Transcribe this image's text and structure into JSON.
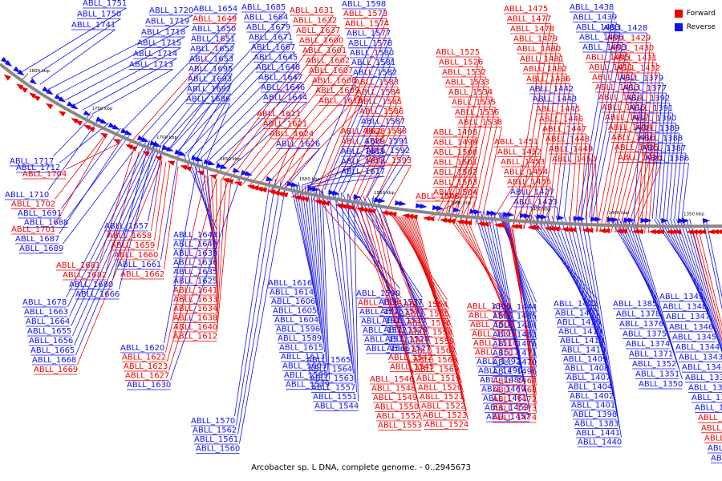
{
  "caption": "Arcobacter sp. L DNA, complete genome. - 0..2945673",
  "legend": [
    {
      "label": "Forward",
      "color": "#ee0000"
    },
    {
      "label": "Reverse",
      "color": "#1010ee"
    }
  ],
  "colors": {
    "forward": "#ee0000",
    "reverse": "#1010ee",
    "backbone": "#888888"
  },
  "ticks": [
    "1800 kbp",
    "1750 kbp",
    "1700 kbp",
    "1650 kbp",
    "1600 kbp",
    "1550 kbp",
    "1500 kbp",
    "1450 kbp",
    "1400 kbp",
    "1350 kbp"
  ],
  "genes": [
    {
      "n": 1751,
      "s": "r"
    },
    {
      "n": 1750,
      "s": "r"
    },
    {
      "n": 1741,
      "s": "r"
    },
    {
      "n": 1720,
      "s": "r"
    },
    {
      "n": 1719,
      "s": "r"
    },
    {
      "n": 1718,
      "s": "r"
    },
    {
      "n": 1715,
      "s": "r"
    },
    {
      "n": 1714,
      "s": "r"
    },
    {
      "n": 1713,
      "s": "r"
    },
    {
      "n": 1717,
      "s": "r"
    },
    {
      "n": 1712,
      "s": "r"
    },
    {
      "n": 1704,
      "s": "f"
    },
    {
      "n": 1710,
      "s": "r"
    },
    {
      "n": 1702,
      "s": "f"
    },
    {
      "n": 1691,
      "s": "r"
    },
    {
      "n": 1688,
      "s": "r"
    },
    {
      "n": 1701,
      "s": "f"
    },
    {
      "n": 1687,
      "s": "r"
    },
    {
      "n": 1689,
      "s": "r"
    },
    {
      "n": 1681,
      "s": "f"
    },
    {
      "n": 1682,
      "s": "f"
    },
    {
      "n": 1680,
      "s": "r"
    },
    {
      "n": 1666,
      "s": "r"
    },
    {
      "n": 1678,
      "s": "r"
    },
    {
      "n": 1663,
      "s": "r"
    },
    {
      "n": 1664,
      "s": "r"
    },
    {
      "n": 1655,
      "s": "r"
    },
    {
      "n": 1656,
      "s": "r"
    },
    {
      "n": 1665,
      "s": "r"
    },
    {
      "n": 1668,
      "s": "r"
    },
    {
      "n": 1669,
      "s": "f"
    },
    {
      "n": 1657,
      "s": "r"
    },
    {
      "n": 1658,
      "s": "f"
    },
    {
      "n": 1659,
      "s": "f"
    },
    {
      "n": 1660,
      "s": "f"
    },
    {
      "n": 1661,
      "s": "r"
    },
    {
      "n": 1662,
      "s": "f"
    },
    {
      "n": 1654,
      "s": "r"
    },
    {
      "n": 1649,
      "s": "f"
    },
    {
      "n": 1650,
      "s": "r"
    },
    {
      "n": 1651,
      "s": "r"
    },
    {
      "n": 1652,
      "s": "r"
    },
    {
      "n": 1653,
      "s": "r"
    },
    {
      "n": 1695,
      "s": "r"
    },
    {
      "n": 1693,
      "s": "r"
    },
    {
      "n": 1692,
      "s": "r"
    },
    {
      "n": 1686,
      "s": "r"
    },
    {
      "n": 1685,
      "s": "r"
    },
    {
      "n": 1684,
      "s": "r"
    },
    {
      "n": 1679,
      "s": "r"
    },
    {
      "n": 1671,
      "s": "r"
    },
    {
      "n": 1667,
      "s": "r"
    },
    {
      "n": 1645,
      "s": "r"
    },
    {
      "n": 1648,
      "s": "r"
    },
    {
      "n": 1647,
      "s": "r"
    },
    {
      "n": 1646,
      "s": "r"
    },
    {
      "n": 1644,
      "s": "r"
    },
    {
      "n": 1643,
      "s": "r"
    },
    {
      "n": 1642,
      "s": "r"
    },
    {
      "n": 1639,
      "s": "r"
    },
    {
      "n": 1636,
      "s": "r"
    },
    {
      "n": 1635,
      "s": "r"
    },
    {
      "n": 1625,
      "s": "r"
    },
    {
      "n": 1641,
      "s": "f"
    },
    {
      "n": 1633,
      "s": "f"
    },
    {
      "n": 1634,
      "s": "f"
    },
    {
      "n": 1638,
      "s": "f"
    },
    {
      "n": 1640,
      "s": "f"
    },
    {
      "n": 1612,
      "s": "f"
    },
    {
      "n": 1620,
      "s": "r"
    },
    {
      "n": 1622,
      "s": "f"
    },
    {
      "n": 1623,
      "s": "f"
    },
    {
      "n": 1627,
      "s": "f"
    },
    {
      "n": 1630,
      "s": "r"
    },
    {
      "n": 1631,
      "s": "f"
    },
    {
      "n": 1632,
      "s": "f"
    },
    {
      "n": 1637,
      "s": "f"
    },
    {
      "n": 1600,
      "s": "f"
    },
    {
      "n": 1601,
      "s": "f"
    },
    {
      "n": 1602,
      "s": "f"
    },
    {
      "n": 1607,
      "s": "f"
    },
    {
      "n": 1608,
      "s": "f"
    },
    {
      "n": 1609,
      "s": "f"
    },
    {
      "n": 1610,
      "s": "f"
    },
    {
      "n": 1611,
      "s": "f"
    },
    {
      "n": 1621,
      "s": "f"
    },
    {
      "n": 1624,
      "s": "f"
    },
    {
      "n": 1626,
      "s": "r"
    },
    {
      "n": 1628,
      "s": "f"
    },
    {
      "n": 1629,
      "s": "f"
    },
    {
      "n": 1619,
      "s": "r"
    },
    {
      "n": 1618,
      "s": "r"
    },
    {
      "n": 1617,
      "s": "r"
    },
    {
      "n": 1616,
      "s": "r"
    },
    {
      "n": 1614,
      "s": "r"
    },
    {
      "n": 1606,
      "s": "r"
    },
    {
      "n": 1605,
      "s": "r"
    },
    {
      "n": 1604,
      "s": "r"
    },
    {
      "n": 1596,
      "s": "r"
    },
    {
      "n": 1589,
      "s": "r"
    },
    {
      "n": 1615,
      "s": "r"
    },
    {
      "n": 1613,
      "s": "r"
    },
    {
      "n": 1603,
      "s": "r"
    },
    {
      "n": 1599,
      "s": "r"
    },
    {
      "n": 1579,
      "s": "r"
    },
    {
      "n": 1570,
      "s": "r"
    },
    {
      "n": 1562,
      "s": "r"
    },
    {
      "n": 1561,
      "s": "r"
    },
    {
      "n": 1560,
      "s": "r"
    },
    {
      "n": 1598,
      "s": "r"
    },
    {
      "n": 1573,
      "s": "f"
    },
    {
      "n": 1574,
      "s": "f"
    },
    {
      "n": 1577,
      "s": "r"
    },
    {
      "n": 1578,
      "s": "r"
    },
    {
      "n": 1580,
      "s": "r"
    },
    {
      "n": 1581,
      "s": "r"
    },
    {
      "n": 1582,
      "s": "r"
    },
    {
      "n": 1583,
      "s": "f"
    },
    {
      "n": 1584,
      "s": "f"
    },
    {
      "n": 1585,
      "s": "f"
    },
    {
      "n": 1586,
      "s": "f"
    },
    {
      "n": 1587,
      "s": "r"
    },
    {
      "n": 1588,
      "s": "f"
    },
    {
      "n": 1591,
      "s": "r"
    },
    {
      "n": 1592,
      "s": "r"
    },
    {
      "n": 1593,
      "s": "f"
    },
    {
      "n": 1590,
      "s": "r"
    },
    {
      "n": 1594,
      "s": "f"
    },
    {
      "n": 1576,
      "s": "r"
    },
    {
      "n": 1575,
      "s": "r"
    },
    {
      "n": 1572,
      "s": "r"
    },
    {
      "n": 1571,
      "s": "r"
    },
    {
      "n": 1566,
      "s": "r"
    },
    {
      "n": 1565,
      "s": "r"
    },
    {
      "n": 1564,
      "s": "r"
    },
    {
      "n": 1563,
      "s": "r"
    },
    {
      "n": 1557,
      "s": "r"
    },
    {
      "n": 1551,
      "s": "r"
    },
    {
      "n": 1544,
      "s": "r"
    },
    {
      "n": 1537,
      "s": "r"
    },
    {
      "n": 1531,
      "s": "r"
    },
    {
      "n": 1530,
      "s": "r"
    },
    {
      "n": 1529,
      "s": "r"
    },
    {
      "n": 1528,
      "s": "r"
    },
    {
      "n": 1527,
      "s": "r"
    },
    {
      "n": 1542,
      "s": "f"
    },
    {
      "n": 1545,
      "s": "f"
    },
    {
      "n": 1546,
      "s": "f"
    },
    {
      "n": 1548,
      "s": "f"
    },
    {
      "n": 1549,
      "s": "f"
    },
    {
      "n": 1550,
      "s": "f"
    },
    {
      "n": 1552,
      "s": "f"
    },
    {
      "n": 1553,
      "s": "f"
    },
    {
      "n": 1554,
      "s": "f"
    },
    {
      "n": 1555,
      "s": "f"
    },
    {
      "n": 1556,
      "s": "f"
    },
    {
      "n": 1558,
      "s": "f"
    },
    {
      "n": 1559,
      "s": "f"
    },
    {
      "n": 1567,
      "s": "f"
    },
    {
      "n": 1568,
      "s": "f"
    },
    {
      "n": 1569,
      "s": "f"
    },
    {
      "n": 1519,
      "s": "f"
    },
    {
      "n": 1520,
      "s": "f"
    },
    {
      "n": 1521,
      "s": "f"
    },
    {
      "n": 1522,
      "s": "f"
    },
    {
      "n": 1523,
      "s": "f"
    },
    {
      "n": 1524,
      "s": "f"
    },
    {
      "n": 1525,
      "s": "f"
    },
    {
      "n": 1526,
      "s": "f"
    },
    {
      "n": 1532,
      "s": "f"
    },
    {
      "n": 1533,
      "s": "f"
    },
    {
      "n": 1534,
      "s": "f"
    },
    {
      "n": 1535,
      "s": "f"
    },
    {
      "n": 1536,
      "s": "f"
    },
    {
      "n": 1538,
      "s": "f"
    },
    {
      "n": 1498,
      "s": "f"
    },
    {
      "n": 1499,
      "s": "f"
    },
    {
      "n": 1500,
      "s": "f"
    },
    {
      "n": 1501,
      "s": "f"
    },
    {
      "n": 1502,
      "s": "f"
    },
    {
      "n": 1503,
      "s": "f"
    },
    {
      "n": 1504,
      "s": "f"
    },
    {
      "n": 1505,
      "s": "f"
    },
    {
      "n": 1506,
      "s": "f"
    },
    {
      "n": 1507,
      "s": "f"
    },
    {
      "n": 1508,
      "s": "f"
    },
    {
      "n": 1509,
      "s": "f"
    },
    {
      "n": 1510,
      "s": "f"
    },
    {
      "n": 1511,
      "s": "f"
    },
    {
      "n": 1492,
      "s": "r"
    },
    {
      "n": 1490,
      "s": "r"
    },
    {
      "n": 1489,
      "s": "r"
    },
    {
      "n": 1469,
      "s": "r"
    },
    {
      "n": 1461,
      "s": "r"
    },
    {
      "n": 1459,
      "s": "r"
    },
    {
      "n": 1457,
      "s": "r"
    },
    {
      "n": 1444,
      "s": "r"
    },
    {
      "n": 1485,
      "s": "r"
    },
    {
      "n": 1484,
      "s": "r"
    },
    {
      "n": 1483,
      "s": "r"
    },
    {
      "n": 1476,
      "s": "r"
    },
    {
      "n": 1471,
      "s": "r"
    },
    {
      "n": 1470,
      "s": "r"
    },
    {
      "n": 1496,
      "s": "r"
    },
    {
      "n": 1467,
      "s": "f"
    },
    {
      "n": 1468,
      "s": "f"
    },
    {
      "n": 1472,
      "s": "f"
    },
    {
      "n": 1473,
      "s": "f"
    },
    {
      "n": 1474,
      "s": "f"
    },
    {
      "n": 1475,
      "s": "f"
    },
    {
      "n": 1477,
      "s": "f"
    },
    {
      "n": 1478,
      "s": "f"
    },
    {
      "n": 1479,
      "s": "f"
    },
    {
      "n": 1480,
      "s": "f"
    },
    {
      "n": 1481,
      "s": "f"
    },
    {
      "n": 1482,
      "s": "f"
    },
    {
      "n": 1486,
      "s": "f"
    },
    {
      "n": 1442,
      "s": "r"
    },
    {
      "n": 1443,
      "s": "r"
    },
    {
      "n": 1445,
      "s": "f"
    },
    {
      "n": 1446,
      "s": "f"
    },
    {
      "n": 1447,
      "s": "f"
    },
    {
      "n": 1448,
      "s": "f"
    },
    {
      "n": 1449,
      "s": "f"
    },
    {
      "n": 1450,
      "s": "f"
    },
    {
      "n": 1451,
      "s": "f"
    },
    {
      "n": 1452,
      "s": "f"
    },
    {
      "n": 1453,
      "s": "f"
    },
    {
      "n": 1454,
      "s": "f"
    },
    {
      "n": 1455,
      "s": "f"
    },
    {
      "n": 1427,
      "s": "r"
    },
    {
      "n": 1423,
      "s": "r"
    },
    {
      "n": 1422,
      "s": "r"
    },
    {
      "n": 1421,
      "s": "r"
    },
    {
      "n": 1420,
      "s": "r"
    },
    {
      "n": 1419,
      "s": "r"
    },
    {
      "n": 1418,
      "s": "r"
    },
    {
      "n": 1410,
      "s": "r"
    },
    {
      "n": 1409,
      "s": "r"
    },
    {
      "n": 1408,
      "s": "r"
    },
    {
      "n": 1407,
      "s": "r"
    },
    {
      "n": 1404,
      "s": "r"
    },
    {
      "n": 1402,
      "s": "r"
    },
    {
      "n": 1401,
      "s": "r"
    },
    {
      "n": 1398,
      "s": "r"
    },
    {
      "n": 1383,
      "s": "r"
    },
    {
      "n": 1441,
      "s": "r"
    },
    {
      "n": 1440,
      "s": "r"
    },
    {
      "n": 1438,
      "s": "r"
    },
    {
      "n": 1439,
      "s": "r"
    },
    {
      "n": 1433,
      "s": "r"
    },
    {
      "n": 1406,
      "s": "r"
    },
    {
      "n": 1403,
      "s": "r"
    },
    {
      "n": 1405,
      "s": "f"
    },
    {
      "n": 1411,
      "s": "f"
    },
    {
      "n": 1412,
      "s": "f"
    },
    {
      "n": 1413,
      "s": "f"
    },
    {
      "n": 1414,
      "s": "f"
    },
    {
      "n": 1415,
      "s": "f"
    },
    {
      "n": 1417,
      "s": "f"
    },
    {
      "n": 1424,
      "s": "f"
    },
    {
      "n": 1416,
      "s": "f"
    },
    {
      "n": 1425,
      "s": "f"
    },
    {
      "n": 1426,
      "s": "f"
    },
    {
      "n": 1428,
      "s": "r"
    },
    {
      "n": 1429,
      "s": "f"
    },
    {
      "n": 1430,
      "s": "f"
    },
    {
      "n": 1431,
      "s": "f"
    },
    {
      "n": 1432,
      "s": "f"
    },
    {
      "n": 1379,
      "s": "r"
    },
    {
      "n": 1377,
      "s": "r"
    },
    {
      "n": 1392,
      "s": "r"
    },
    {
      "n": 1391,
      "s": "r"
    },
    {
      "n": 1390,
      "s": "r"
    },
    {
      "n": 1389,
      "s": "r"
    },
    {
      "n": 1388,
      "s": "r"
    },
    {
      "n": 1387,
      "s": "r"
    },
    {
      "n": 1386,
      "s": "r"
    },
    {
      "n": 1385,
      "s": "r"
    },
    {
      "n": 1378,
      "s": "r"
    },
    {
      "n": 1376,
      "s": "r"
    },
    {
      "n": 1375,
      "s": "r"
    },
    {
      "n": 1374,
      "s": "r"
    },
    {
      "n": 1371,
      "s": "r"
    },
    {
      "n": 1352,
      "s": "r"
    },
    {
      "n": 1351,
      "s": "r"
    },
    {
      "n": 1350,
      "s": "r"
    },
    {
      "n": 1349,
      "s": "r"
    },
    {
      "n": 1348,
      "s": "r"
    },
    {
      "n": 1347,
      "s": "r"
    },
    {
      "n": 1346,
      "s": "r"
    },
    {
      "n": 1345,
      "s": "r"
    },
    {
      "n": 1344,
      "s": "r"
    },
    {
      "n": 1343,
      "s": "r"
    },
    {
      "n": 1342,
      "s": "r"
    },
    {
      "n": 1337,
      "s": "r"
    },
    {
      "n": 1336,
      "s": "r"
    },
    {
      "n": 1335,
      "s": "r"
    },
    {
      "n": 1327,
      "s": "r"
    },
    {
      "n": 1382,
      "s": "f"
    },
    {
      "n": 1384,
      "s": "f"
    },
    {
      "n": 1393,
      "s": "f"
    },
    {
      "n": 1394,
      "s": "r"
    },
    {
      "n": 1395,
      "s": "r"
    },
    {
      "n": 1396,
      "s": "f"
    },
    {
      "n": 1397,
      "s": "f"
    },
    {
      "n": 1399,
      "s": "f"
    },
    {
      "n": 1400,
      "s": "f"
    },
    {
      "n": 1353,
      "s": "f"
    },
    {
      "n": 1354,
      "s": "f"
    },
    {
      "n": 1355,
      "s": "f"
    },
    {
      "n": 1356,
      "s": "f"
    },
    {
      "n": 1357,
      "s": "f"
    },
    {
      "n": 1358,
      "s": "f"
    },
    {
      "n": 1359,
      "s": "f"
    },
    {
      "n": 1360,
      "s": "f"
    },
    {
      "n": 1361,
      "s": "f"
    },
    {
      "n": 1362,
      "s": "f"
    },
    {
      "n": 1363,
      "s": "f"
    },
    {
      "n": 1364,
      "s": "f"
    },
    {
      "n": 1365,
      "s": "f"
    },
    {
      "n": 1366,
      "s": "f"
    },
    {
      "n": 1367,
      "s": "f"
    },
    {
      "n": 1368,
      "s": "f"
    },
    {
      "n": 1369,
      "s": "f"
    }
  ]
}
